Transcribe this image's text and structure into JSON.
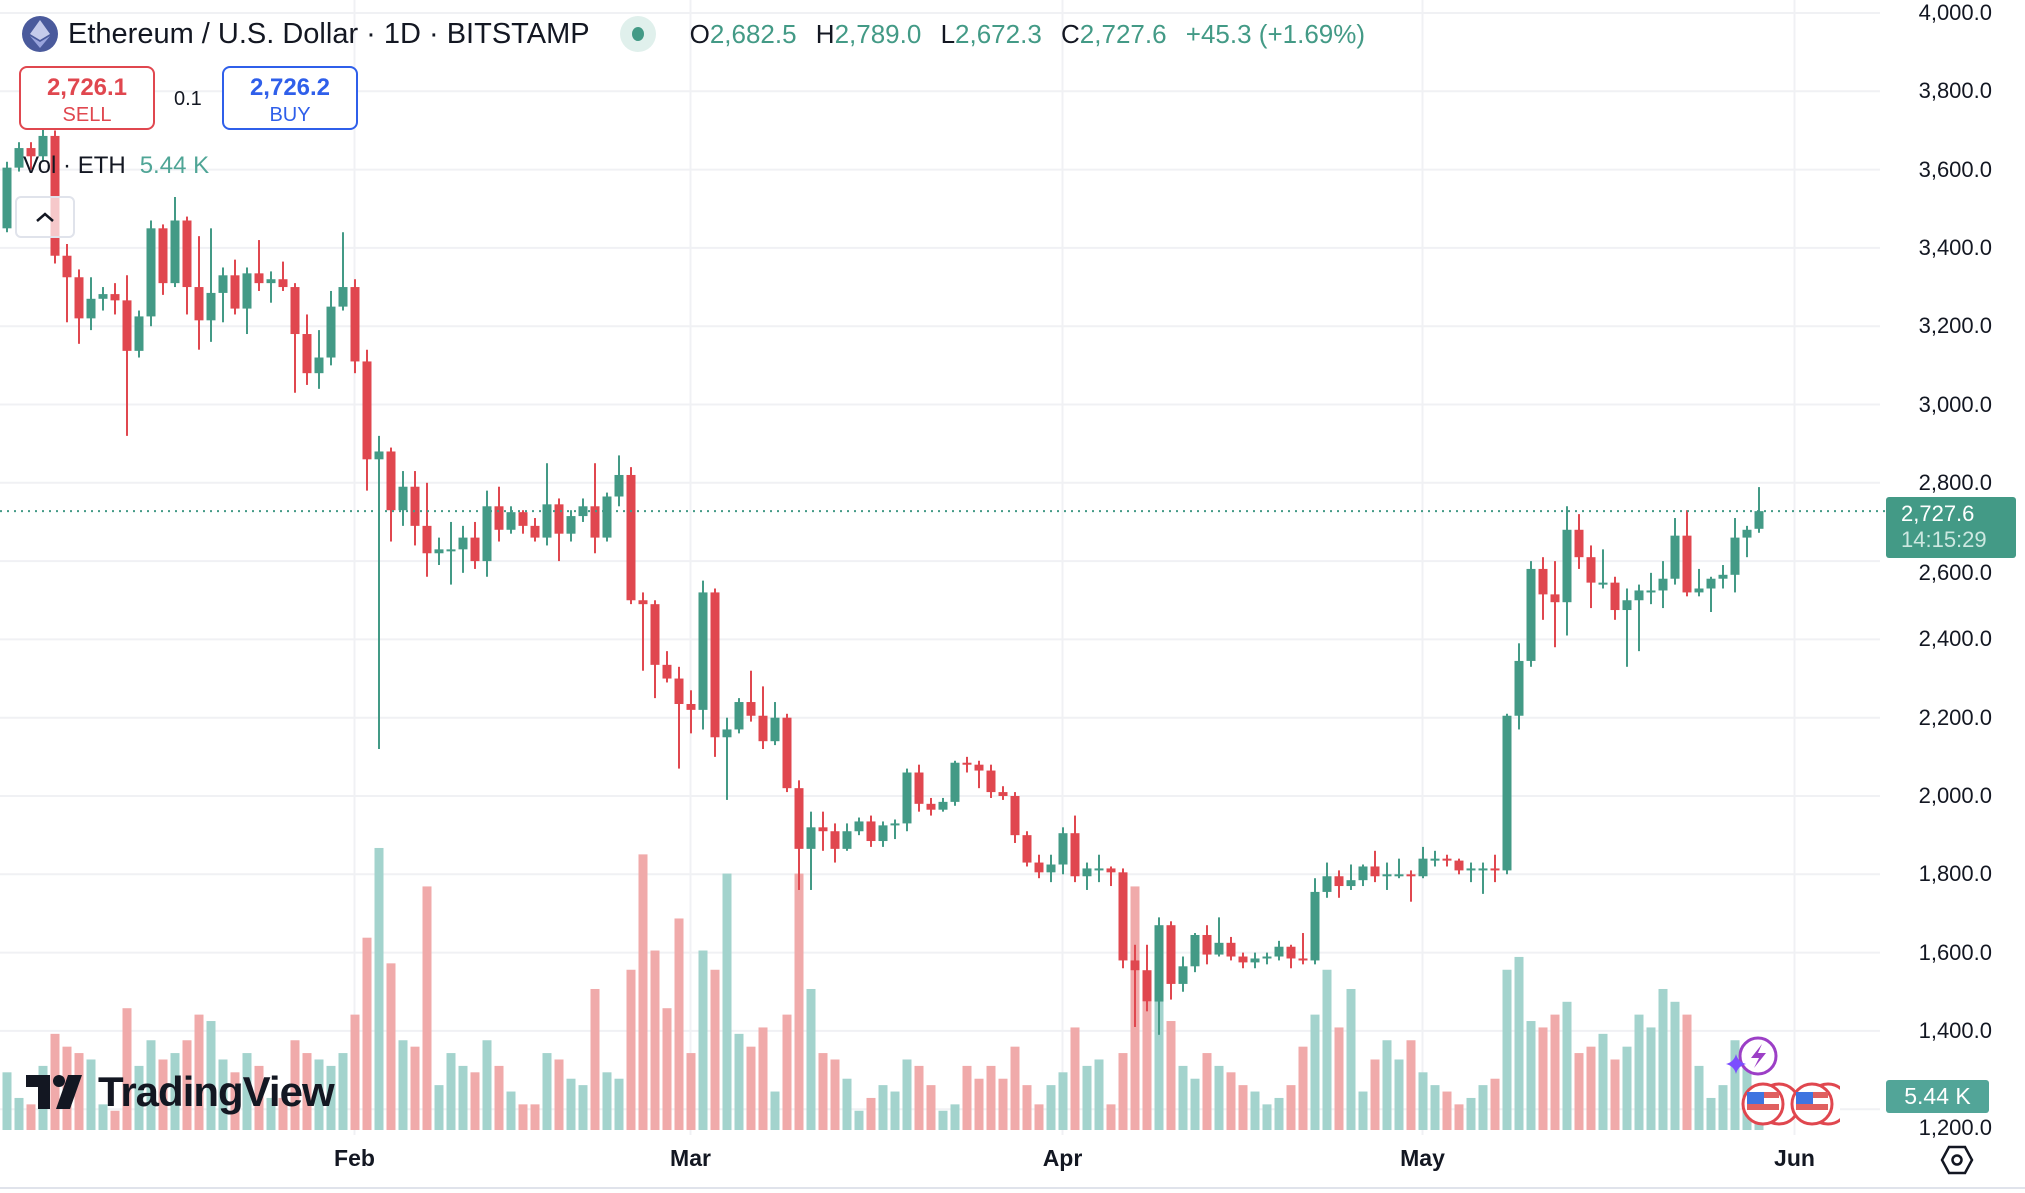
{
  "header": {
    "symbol": "Ethereum / U.S. Dollar · 1D · BITSTAMP",
    "icon": "ethereum-icon",
    "ohlc": {
      "o_label": "O",
      "o": "2,682.5",
      "h_label": "H",
      "h": "2,789.0",
      "l_label": "L",
      "l": "2,672.3",
      "c_label": "C",
      "c": "2,727.6",
      "change": "+45.3 (+1.69%)"
    }
  },
  "trade": {
    "sell_price": "2,726.1",
    "sell_label": "SELL",
    "quantity": "0.1",
    "buy_price": "2,726.2",
    "buy_label": "BUY"
  },
  "volume_legend": {
    "label": "Vol · ETH",
    "value": "5.44 K"
  },
  "price_tag": {
    "price": "2,727.6",
    "countdown": "14:15:29"
  },
  "volume_tag": "5.44 K",
  "logo_text": "TradingView",
  "colors": {
    "up": "#439a86",
    "down": "#e0474f",
    "up_volume": "#a3d3cd",
    "down_volume": "#f0aaaa",
    "sell": "#e0474f",
    "buy": "#2f5fea"
  },
  "chart_data": {
    "type": "candlestick",
    "columns": [
      "date",
      "open",
      "high",
      "low",
      "close",
      "volume_k"
    ],
    "ylim": [
      1200,
      4000
    ],
    "y_ticks": [
      "4,000.0",
      "3,800.0",
      "3,600.0",
      "3,400.0",
      "3,200.0",
      "3,000.0",
      "2,800.0",
      "2,600.0",
      "2,400.0",
      "2,200.0",
      "2,000.0",
      "1,800.0",
      "1,600.0",
      "1,400.0",
      "1,200.0"
    ],
    "x_ticks": [
      {
        "label": "Feb",
        "date": "Feb 1"
      },
      {
        "label": "Mar",
        "date": "Mar 1"
      },
      {
        "label": "Apr",
        "date": "Apr 1"
      },
      {
        "label": "May",
        "date": "May 1"
      },
      {
        "label": "Jun",
        "date": "Jun 1"
      }
    ],
    "current_price": 2727.6,
    "grid": true,
    "candles": [
      [
        "Jan 3",
        3450,
        3620,
        3440,
        3605,
        9
      ],
      [
        "Jan 4",
        3605,
        3670,
        3595,
        3655,
        5
      ],
      [
        "Jan 5",
        3655,
        3670,
        3600,
        3634,
        4
      ],
      [
        "Jan 6",
        3634,
        3740,
        3620,
        3686,
        10
      ],
      [
        "Jan 7",
        3686,
        3700,
        3360,
        3380,
        15
      ],
      [
        "Jan 8",
        3380,
        3410,
        3210,
        3325,
        13
      ],
      [
        "Jan 9",
        3325,
        3345,
        3155,
        3220,
        12
      ],
      [
        "Jan 10",
        3220,
        3325,
        3190,
        3270,
        11
      ],
      [
        "Jan 11",
        3270,
        3300,
        3240,
        3282,
        4
      ],
      [
        "Jan 12",
        3282,
        3310,
        3230,
        3266,
        3
      ],
      [
        "Jan 13",
        3266,
        3330,
        2920,
        3137,
        19
      ],
      [
        "Jan 14",
        3137,
        3240,
        3120,
        3225,
        10
      ],
      [
        "Jan 15",
        3225,
        3470,
        3200,
        3450,
        14
      ],
      [
        "Jan 16",
        3450,
        3460,
        3280,
        3310,
        11
      ],
      [
        "Jan 17",
        3310,
        3530,
        3300,
        3470,
        12
      ],
      [
        "Jan 18",
        3470,
        3480,
        3230,
        3300,
        14
      ],
      [
        "Jan 19",
        3300,
        3430,
        3140,
        3215,
        18
      ],
      [
        "Jan 20",
        3215,
        3450,
        3160,
        3285,
        17
      ],
      [
        "Jan 21",
        3285,
        3350,
        3210,
        3330,
        11
      ],
      [
        "Jan 22",
        3330,
        3370,
        3230,
        3245,
        9
      ],
      [
        "Jan 23",
        3245,
        3350,
        3180,
        3335,
        12
      ],
      [
        "Jan 24",
        3335,
        3420,
        3290,
        3310,
        10
      ],
      [
        "Jan 25",
        3310,
        3340,
        3260,
        3320,
        5
      ],
      [
        "Jan 26",
        3320,
        3365,
        3290,
        3300,
        5
      ],
      [
        "Jan 27",
        3300,
        3310,
        3030,
        3180,
        14
      ],
      [
        "Jan 28",
        3180,
        3230,
        3050,
        3080,
        12
      ],
      [
        "Jan 29",
        3080,
        3190,
        3040,
        3120,
        11
      ],
      [
        "Jan 30",
        3120,
        3290,
        3100,
        3250,
        10
      ],
      [
        "Jan 31",
        3250,
        3440,
        3240,
        3300,
        12
      ],
      [
        "Feb 1",
        3300,
        3320,
        3080,
        3110,
        18
      ],
      [
        "Feb 2",
        3110,
        3140,
        2780,
        2860,
        30
      ],
      [
        "Feb 3",
        2860,
        2920,
        2120,
        2880,
        44
      ],
      [
        "Feb 4",
        2880,
        2890,
        2650,
        2730,
        26
      ],
      [
        "Feb 5",
        2730,
        2830,
        2690,
        2790,
        14
      ],
      [
        "Feb 6",
        2790,
        2830,
        2640,
        2690,
        13
      ],
      [
        "Feb 7",
        2690,
        2800,
        2560,
        2620,
        38
      ],
      [
        "Feb 8",
        2620,
        2660,
        2590,
        2630,
        7
      ],
      [
        "Feb 9",
        2630,
        2700,
        2540,
        2630,
        12
      ],
      [
        "Feb 10",
        2630,
        2690,
        2570,
        2660,
        10
      ],
      [
        "Feb 11",
        2660,
        2700,
        2580,
        2600,
        9
      ],
      [
        "Feb 12",
        2600,
        2780,
        2560,
        2740,
        14
      ],
      [
        "Feb 13",
        2740,
        2790,
        2650,
        2680,
        10
      ],
      [
        "Feb 14",
        2680,
        2740,
        2670,
        2725,
        6
      ],
      [
        "Feb 15",
        2725,
        2730,
        2670,
        2690,
        4
      ],
      [
        "Feb 16",
        2690,
        2710,
        2650,
        2660,
        4
      ],
      [
        "Feb 17",
        2660,
        2850,
        2640,
        2745,
        12
      ],
      [
        "Feb 18",
        2745,
        2760,
        2600,
        2670,
        11
      ],
      [
        "Feb 19",
        2670,
        2730,
        2650,
        2715,
        8
      ],
      [
        "Feb 20",
        2715,
        2760,
        2700,
        2740,
        7
      ],
      [
        "Feb 21",
        2740,
        2850,
        2620,
        2660,
        22
      ],
      [
        "Feb 22",
        2660,
        2775,
        2650,
        2765,
        9
      ],
      [
        "Feb 23",
        2765,
        2870,
        2740,
        2820,
        8
      ],
      [
        "Feb 24",
        2820,
        2840,
        2490,
        2500,
        25
      ],
      [
        "Feb 25",
        2500,
        2520,
        2320,
        2490,
        43
      ],
      [
        "Feb 26",
        2490,
        2500,
        2250,
        2335,
        28
      ],
      [
        "Feb 27",
        2335,
        2370,
        2290,
        2300,
        19
      ],
      [
        "Feb 28",
        2300,
        2330,
        2070,
        2235,
        33
      ],
      [
        "Mar 1",
        2235,
        2270,
        2160,
        2220,
        12
      ],
      [
        "Mar 2",
        2220,
        2550,
        2170,
        2520,
        28
      ],
      [
        "Mar 3",
        2520,
        2530,
        2100,
        2150,
        25
      ],
      [
        "Mar 4",
        2150,
        2200,
        1990,
        2170,
        40
      ],
      [
        "Mar 5",
        2170,
        2250,
        2160,
        2240,
        15
      ],
      [
        "Mar 6",
        2240,
        2320,
        2190,
        2205,
        13
      ],
      [
        "Mar 7",
        2205,
        2280,
        2120,
        2140,
        16
      ],
      [
        "Mar 8",
        2140,
        2240,
        2130,
        2200,
        6
      ],
      [
        "Mar 9",
        2200,
        2210,
        2010,
        2020,
        18
      ],
      [
        "Mar 10",
        2020,
        2040,
        1760,
        1865,
        40
      ],
      [
        "Mar 11",
        1865,
        1960,
        1760,
        1920,
        22
      ],
      [
        "Mar 12",
        1920,
        1960,
        1860,
        1910,
        12
      ],
      [
        "Mar 13",
        1910,
        1930,
        1830,
        1865,
        11
      ],
      [
        "Mar 14",
        1865,
        1930,
        1860,
        1910,
        8
      ],
      [
        "Mar 15",
        1910,
        1945,
        1900,
        1935,
        3
      ],
      [
        "Mar 16",
        1935,
        1950,
        1870,
        1885,
        5
      ],
      [
        "Mar 17",
        1885,
        1935,
        1870,
        1925,
        7
      ],
      [
        "Mar 18",
        1925,
        1940,
        1890,
        1930,
        6
      ],
      [
        "Mar 19",
        1930,
        2070,
        1910,
        2060,
        11
      ],
      [
        "Mar 20",
        2060,
        2080,
        1960,
        1980,
        10
      ],
      [
        "Mar 21",
        1980,
        1995,
        1950,
        1965,
        7
      ],
      [
        "Mar 22",
        1965,
        1995,
        1960,
        1985,
        3
      ],
      [
        "Mar 23",
        1985,
        2090,
        1975,
        2085,
        4
      ],
      [
        "Mar 24",
        2085,
        2100,
        2060,
        2080,
        10
      ],
      [
        "Mar 25",
        2080,
        2090,
        2020,
        2065,
        8
      ],
      [
        "Mar 26",
        2065,
        2080,
        1995,
        2010,
        10
      ],
      [
        "Mar 27",
        2010,
        2025,
        1990,
        2000,
        8
      ],
      [
        "Mar 28",
        2000,
        2010,
        1880,
        1900,
        13
      ],
      [
        "Mar 29",
        1900,
        1910,
        1820,
        1830,
        7
      ],
      [
        "Mar 30",
        1830,
        1850,
        1790,
        1805,
        4
      ],
      [
        "Mar 31",
        1805,
        1850,
        1780,
        1825,
        7
      ],
      [
        "Apr 1",
        1825,
        1920,
        1800,
        1905,
        9
      ],
      [
        "Apr 2",
        1905,
        1950,
        1780,
        1795,
        16
      ],
      [
        "Apr 3",
        1795,
        1830,
        1760,
        1815,
        10
      ],
      [
        "Apr 4",
        1815,
        1850,
        1780,
        1815,
        11
      ],
      [
        "Apr 5",
        1815,
        1820,
        1770,
        1805,
        4
      ],
      [
        "Apr 6",
        1805,
        1815,
        1560,
        1580,
        12
      ],
      [
        "Apr 7",
        1580,
        1620,
        1410,
        1555,
        38
      ],
      [
        "Apr 8",
        1555,
        1620,
        1450,
        1475,
        20
      ],
      [
        "Apr 9",
        1475,
        1690,
        1390,
        1670,
        28
      ],
      [
        "Apr 10",
        1670,
        1680,
        1480,
        1520,
        17
      ],
      [
        "Apr 11",
        1520,
        1590,
        1500,
        1565,
        10
      ],
      [
        "Apr 12",
        1565,
        1650,
        1550,
        1645,
        8
      ],
      [
        "Apr 13",
        1645,
        1670,
        1570,
        1595,
        12
      ],
      [
        "Apr 14",
        1595,
        1690,
        1590,
        1625,
        10
      ],
      [
        "Apr 15",
        1625,
        1640,
        1580,
        1590,
        9
      ],
      [
        "Apr 16",
        1590,
        1600,
        1560,
        1575,
        7
      ],
      [
        "Apr 17",
        1575,
        1600,
        1560,
        1585,
        6
      ],
      [
        "Apr 18",
        1585,
        1600,
        1570,
        1590,
        4
      ],
      [
        "Apr 19",
        1590,
        1630,
        1580,
        1615,
        5
      ],
      [
        "Apr 20",
        1615,
        1620,
        1560,
        1585,
        7
      ],
      [
        "Apr 21",
        1585,
        1650,
        1570,
        1580,
        13
      ],
      [
        "Apr 22",
        1580,
        1790,
        1570,
        1755,
        18
      ],
      [
        "Apr 23",
        1755,
        1830,
        1740,
        1795,
        25
      ],
      [
        "Apr 24",
        1795,
        1810,
        1740,
        1770,
        16
      ],
      [
        "Apr 25",
        1770,
        1825,
        1760,
        1785,
        22
      ],
      [
        "Apr 26",
        1785,
        1825,
        1770,
        1820,
        6
      ],
      [
        "Apr 27",
        1820,
        1860,
        1780,
        1795,
        11
      ],
      [
        "Apr 28",
        1795,
        1830,
        1760,
        1800,
        14
      ],
      [
        "Apr 29",
        1800,
        1840,
        1790,
        1800,
        11
      ],
      [
        "Apr 30",
        1800,
        1810,
        1730,
        1795,
        14
      ],
      [
        "May 1",
        1795,
        1870,
        1790,
        1840,
        9
      ],
      [
        "May 2",
        1840,
        1860,
        1820,
        1840,
        7
      ],
      [
        "May 3",
        1840,
        1850,
        1820,
        1835,
        6
      ],
      [
        "May 4",
        1835,
        1840,
        1800,
        1810,
        4
      ],
      [
        "May 5",
        1810,
        1830,
        1780,
        1815,
        5
      ],
      [
        "May 6",
        1815,
        1830,
        1750,
        1815,
        7
      ],
      [
        "May 7",
        1815,
        1850,
        1780,
        1810,
        8
      ],
      [
        "May 8",
        1810,
        2210,
        1800,
        2205,
        25
      ],
      [
        "May 9",
        2205,
        2390,
        2170,
        2345,
        27
      ],
      [
        "May 10",
        2345,
        2600,
        2330,
        2580,
        17
      ],
      [
        "May 11",
        2580,
        2610,
        2450,
        2515,
        16
      ],
      [
        "May 12",
        2515,
        2600,
        2380,
        2495,
        18
      ],
      [
        "May 13",
        2495,
        2740,
        2410,
        2680,
        20
      ],
      [
        "May 14",
        2680,
        2720,
        2580,
        2610,
        12
      ],
      [
        "May 15",
        2610,
        2640,
        2480,
        2545,
        13
      ],
      [
        "May 16",
        2545,
        2630,
        2530,
        2545,
        15
      ],
      [
        "May 17",
        2545,
        2560,
        2450,
        2475,
        11
      ],
      [
        "May 18",
        2475,
        2530,
        2330,
        2500,
        13
      ],
      [
        "May 19",
        2500,
        2540,
        2370,
        2525,
        18
      ],
      [
        "May 20",
        2525,
        2570,
        2490,
        2525,
        16
      ],
      [
        "May 21",
        2525,
        2600,
        2480,
        2555,
        22
      ],
      [
        "May 22",
        2555,
        2710,
        2540,
        2665,
        20
      ],
      [
        "May 23",
        2665,
        2730,
        2510,
        2520,
        18
      ],
      [
        "May 24",
        2520,
        2580,
        2510,
        2530,
        10
      ],
      [
        "May 25",
        2530,
        2560,
        2470,
        2555,
        5
      ],
      [
        "May 26",
        2555,
        2590,
        2530,
        2565,
        7
      ],
      [
        "May 27",
        2565,
        2710,
        2520,
        2660,
        14
      ],
      [
        "May 28",
        2660,
        2690,
        2610,
        2680,
        12
      ],
      [
        "May 29",
        2682.5,
        2789.0,
        2672.3,
        2727.6,
        5.44
      ]
    ]
  }
}
